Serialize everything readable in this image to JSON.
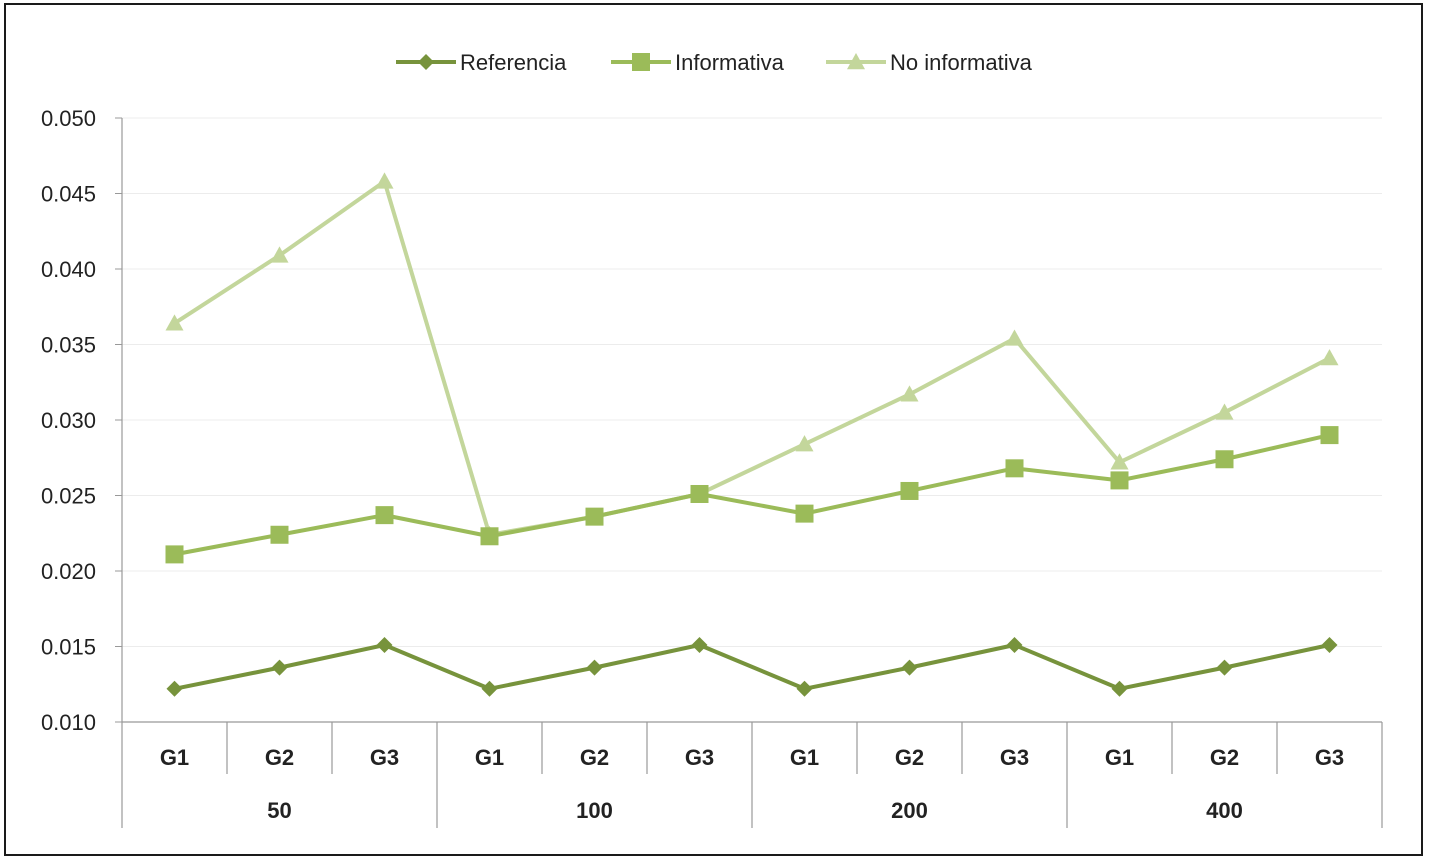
{
  "chart_data": {
    "type": "line",
    "title": "",
    "xlabel": "",
    "ylabel": "",
    "ylim": [
      0.01,
      0.05
    ],
    "yticks": [
      "0.010",
      "0.015",
      "0.020",
      "0.025",
      "0.030",
      "0.035",
      "0.040",
      "0.045",
      "0.050"
    ],
    "groups": [
      {
        "label": "50",
        "categories": [
          "G1",
          "G2",
          "G3"
        ]
      },
      {
        "label": "100",
        "categories": [
          "G1",
          "G2",
          "G3"
        ]
      },
      {
        "label": "200",
        "categories": [
          "G1",
          "G2",
          "G3"
        ]
      },
      {
        "label": "400",
        "categories": [
          "G1",
          "G2",
          "G3"
        ]
      }
    ],
    "series": [
      {
        "name": "Referencia",
        "color": "#77933c",
        "marker": "diamond",
        "values": [
          0.0122,
          0.0136,
          0.0151,
          0.0122,
          0.0136,
          0.0151,
          0.0122,
          0.0136,
          0.0151,
          0.0122,
          0.0136,
          0.0151
        ]
      },
      {
        "name": "Informativa",
        "color": "#9bbb59",
        "marker": "square",
        "values": [
          0.0211,
          0.0224,
          0.0237,
          0.0223,
          0.0236,
          0.0251,
          0.0238,
          0.0253,
          0.0268,
          0.026,
          0.0274,
          0.029
        ]
      },
      {
        "name": "No informativa",
        "color": "#c3d69b",
        "marker": "triangle",
        "values": [
          0.0364,
          0.0409,
          0.0458,
          0.0224,
          0.0236,
          0.0251,
          0.0284,
          0.0317,
          0.0354,
          0.0272,
          0.0305,
          0.0341
        ]
      }
    ],
    "legend": "top-center",
    "grid": true
  }
}
